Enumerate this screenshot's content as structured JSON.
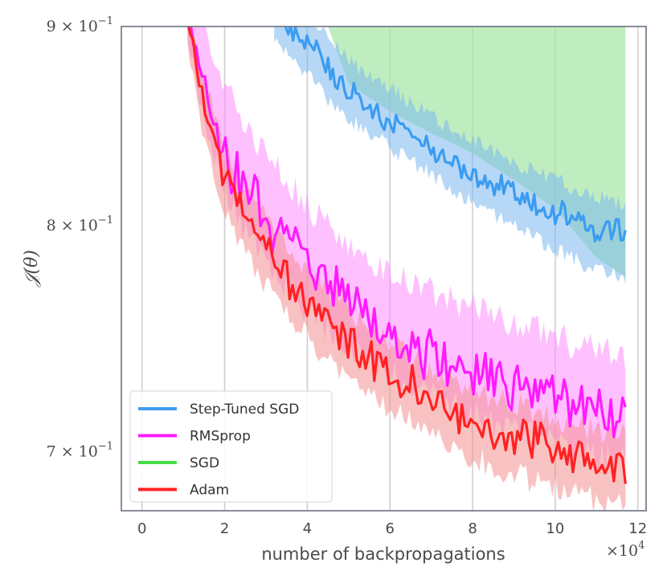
{
  "chart_data": {
    "type": "line",
    "xlabel": "number of backpropagations",
    "ylabel": "𝒥(θ)",
    "x_multiplier_label": "×10",
    "x_multiplier_exp": "4",
    "x_scale": 10000,
    "xlim": [
      -0.5,
      12.2
    ],
    "ylim": [
      0.676,
      0.9
    ],
    "yscale": "log",
    "grid": "vertical",
    "legend": "bottom-left",
    "xticks": [
      {
        "value": 0,
        "label": "0"
      },
      {
        "value": 2,
        "label": "2"
      },
      {
        "value": 4,
        "label": "4"
      },
      {
        "value": 6,
        "label": "6"
      },
      {
        "value": 8,
        "label": "8"
      },
      {
        "value": 10,
        "label": "10"
      },
      {
        "value": 12,
        "label": "12"
      }
    ],
    "yticks": [
      {
        "value": 0.9,
        "mant": "9 × 10",
        "exp": "−1"
      },
      {
        "value": 0.8,
        "mant": "8 × 10",
        "exp": "−1"
      },
      {
        "value": 0.7,
        "mant": "7 × 10",
        "exp": "−1"
      }
    ],
    "series": [
      {
        "name": "Step-Tuned SGD",
        "color": "#3b9cf2",
        "band_color": "#7ab8ee",
        "x": [
          3.2,
          3.6,
          4.0,
          4.5,
          5.0,
          5.5,
          6.0,
          6.5,
          7.0,
          7.5,
          8.0,
          8.5,
          9.0,
          9.5,
          10.0,
          10.5,
          11.0,
          11.5,
          11.7
        ],
        "y": [
          0.905,
          0.898,
          0.893,
          0.878,
          0.866,
          0.858,
          0.851,
          0.845,
          0.838,
          0.832,
          0.826,
          0.821,
          0.815,
          0.81,
          0.806,
          0.802,
          0.799,
          0.797,
          0.796
        ],
        "noise": [
          0.004,
          0.004,
          0.005,
          0.005,
          0.005,
          0.005,
          0.005,
          0.005,
          0.005,
          0.005,
          0.005,
          0.005,
          0.005,
          0.005,
          0.005,
          0.005,
          0.005,
          0.005,
          0.005
        ],
        "lower": [
          0.893,
          0.885,
          0.875,
          0.862,
          0.852,
          0.845,
          0.838,
          0.831,
          0.825,
          0.818,
          0.812,
          0.806,
          0.8,
          0.794,
          0.789,
          0.784,
          0.78,
          0.778,
          0.776
        ],
        "upper": [
          0.91,
          0.91,
          0.905,
          0.895,
          0.882,
          0.874,
          0.868,
          0.861,
          0.854,
          0.847,
          0.842,
          0.837,
          0.831,
          0.826,
          0.822,
          0.818,
          0.814,
          0.812,
          0.811
        ]
      },
      {
        "name": "RMSprop",
        "color": "#ff1aff",
        "band_color": "#ff8cff",
        "x": [
          1.1,
          1.5,
          2.0,
          2.5,
          3.0,
          3.5,
          4.0,
          4.5,
          5.0,
          5.5,
          6.0,
          6.5,
          7.0,
          7.5,
          8.0,
          8.5,
          9.0,
          9.5,
          10.0,
          10.5,
          11.0,
          11.5,
          11.7
        ],
        "y": [
          0.905,
          0.87,
          0.834,
          0.818,
          0.805,
          0.792,
          0.781,
          0.772,
          0.764,
          0.758,
          0.752,
          0.747,
          0.742,
          0.738,
          0.735,
          0.731,
          0.728,
          0.725,
          0.722,
          0.719,
          0.717,
          0.715,
          0.714
        ],
        "noise": [
          0.004,
          0.007,
          0.009,
          0.01,
          0.01,
          0.01,
          0.01,
          0.01,
          0.009,
          0.009,
          0.009,
          0.009,
          0.009,
          0.009,
          0.009,
          0.009,
          0.009,
          0.009,
          0.009,
          0.009,
          0.009,
          0.009,
          0.009
        ],
        "lower": [
          0.895,
          0.85,
          0.815,
          0.798,
          0.786,
          0.773,
          0.762,
          0.753,
          0.745,
          0.739,
          0.733,
          0.728,
          0.723,
          0.719,
          0.716,
          0.712,
          0.709,
          0.706,
          0.703,
          0.7,
          0.698,
          0.696,
          0.695
        ],
        "upper": [
          0.91,
          0.9,
          0.87,
          0.85,
          0.835,
          0.822,
          0.81,
          0.8,
          0.792,
          0.785,
          0.779,
          0.774,
          0.769,
          0.765,
          0.762,
          0.758,
          0.755,
          0.752,
          0.749,
          0.746,
          0.744,
          0.742,
          0.741
        ]
      },
      {
        "name": "SGD",
        "color": "#44dd44",
        "band_color": "#a8e6a8",
        "x": [
          4.5,
          5.0,
          6.0,
          7.0,
          8.0,
          9.0,
          10.0,
          11.0,
          11.7
        ],
        "y": [
          0.92,
          0.92,
          0.92,
          0.92,
          0.92,
          0.92,
          0.92,
          0.92,
          0.92
        ],
        "noise": [
          0,
          0,
          0,
          0,
          0,
          0,
          0,
          0,
          0
        ],
        "lower": [
          0.9,
          0.87,
          0.856,
          0.845,
          0.835,
          0.822,
          0.808,
          0.785,
          0.776
        ],
        "upper": [
          0.92,
          0.92,
          0.92,
          0.92,
          0.92,
          0.92,
          0.92,
          0.92,
          0.92
        ]
      },
      {
        "name": "Adam",
        "color": "#ff2222",
        "band_color": "#f49090",
        "x": [
          1.1,
          1.5,
          2.0,
          2.5,
          3.0,
          3.5,
          4.0,
          4.5,
          5.0,
          5.5,
          6.0,
          6.5,
          7.0,
          7.5,
          8.0,
          8.5,
          9.0,
          9.5,
          10.0,
          10.5,
          11.0,
          11.5,
          11.7
        ],
        "y": [
          0.905,
          0.86,
          0.823,
          0.803,
          0.788,
          0.776,
          0.766,
          0.756,
          0.747,
          0.74,
          0.734,
          0.728,
          0.723,
          0.718,
          0.714,
          0.71,
          0.707,
          0.704,
          0.701,
          0.698,
          0.696,
          0.694,
          0.692
        ],
        "noise": [
          0.004,
          0.006,
          0.007,
          0.007,
          0.007,
          0.007,
          0.007,
          0.007,
          0.007,
          0.007,
          0.007,
          0.007,
          0.007,
          0.007,
          0.007,
          0.007,
          0.007,
          0.007,
          0.007,
          0.007,
          0.007,
          0.007,
          0.007
        ],
        "lower": [
          0.89,
          0.84,
          0.806,
          0.786,
          0.772,
          0.76,
          0.749,
          0.739,
          0.731,
          0.724,
          0.718,
          0.712,
          0.707,
          0.702,
          0.698,
          0.694,
          0.691,
          0.688,
          0.685,
          0.682,
          0.68,
          0.678,
          0.677
        ],
        "upper": [
          0.91,
          0.875,
          0.837,
          0.818,
          0.803,
          0.79,
          0.779,
          0.769,
          0.761,
          0.754,
          0.747,
          0.741,
          0.736,
          0.731,
          0.727,
          0.723,
          0.72,
          0.717,
          0.714,
          0.711,
          0.709,
          0.707,
          0.706
        ]
      }
    ]
  }
}
